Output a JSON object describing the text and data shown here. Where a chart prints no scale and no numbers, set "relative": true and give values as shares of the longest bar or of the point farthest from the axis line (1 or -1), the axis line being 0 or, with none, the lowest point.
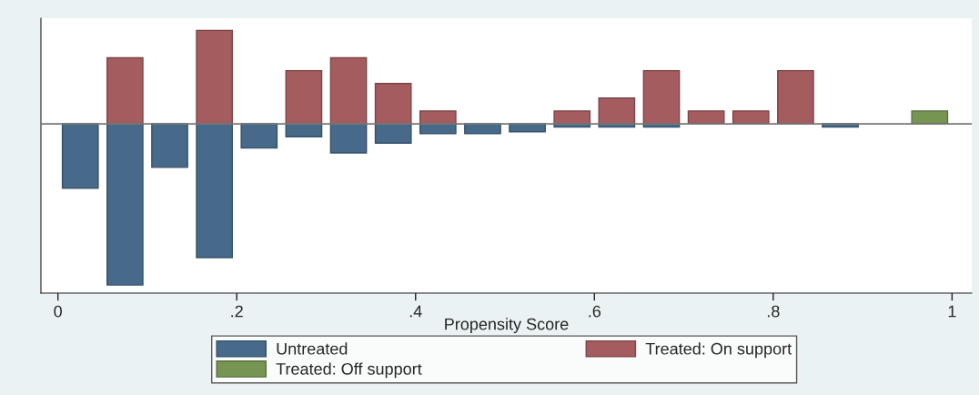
{
  "chart_data": {
    "type": "bar",
    "relative": true,
    "xlabel": "Propensity Score",
    "x": [
      0.025,
      0.075,
      0.125,
      0.175,
      0.225,
      0.275,
      0.325,
      0.375,
      0.425,
      0.475,
      0.525,
      0.575,
      0.625,
      0.675,
      0.725,
      0.775,
      0.825,
      0.875,
      0.925,
      0.975
    ],
    "xlim": [
      -0.019,
      1.022
    ],
    "xticks": [
      0,
      {
        "value": 0.2,
        "label": ".2"
      },
      {
        "value": 0.4,
        "label": ".4"
      },
      {
        "value": 0.6,
        "label": ".6"
      },
      {
        "value": 0.8,
        "label": ".8"
      },
      1
    ],
    "series": [
      {
        "name": "Untreated",
        "color": "#476a8a",
        "values": [
          -0.4,
          -1,
          -0.27,
          -0.83,
          -0.15,
          -0.08,
          -0.18,
          -0.12,
          -0.06,
          -0.06,
          -0.05,
          -0.02,
          -0.02,
          -0.02,
          null,
          null,
          null,
          -0.02,
          null,
          null
        ]
      },
      {
        "name": "Treated: On support",
        "color": "#a55c5f",
        "values": [
          null,
          0.41,
          null,
          0.58,
          null,
          0.33,
          0.41,
          0.25,
          0.08,
          null,
          null,
          0.08,
          0.16,
          0.33,
          0.08,
          0.08,
          0.33,
          null,
          null,
          null
        ]
      },
      {
        "name": "Treated: Off support",
        "color": "#779552",
        "values": [
          null,
          null,
          null,
          null,
          null,
          null,
          null,
          null,
          null,
          null,
          null,
          null,
          null,
          null,
          null,
          null,
          null,
          null,
          null,
          0.08
        ]
      }
    ],
    "legend": "bottom",
    "grid": false
  }
}
